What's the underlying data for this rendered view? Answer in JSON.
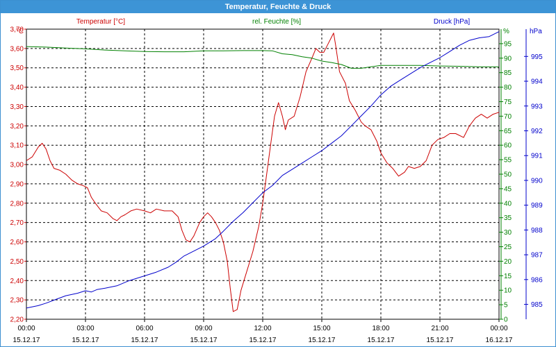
{
  "window": {
    "title": "Temperatur, Feuchte & Druck"
  },
  "chart_data": {
    "type": "line",
    "title": "Temperatur, Feuchte & Druck",
    "grid": true,
    "colors": {
      "temperature": "#cc0000",
      "humidity": "#008000",
      "pressure": "#0000cc",
      "grid": "#000000"
    },
    "x_ticks": [
      {
        "time": "00:00",
        "date": "15.12.17"
      },
      {
        "time": "03:00",
        "date": "15.12.17"
      },
      {
        "time": "06:00",
        "date": "15.12.17"
      },
      {
        "time": "09:00",
        "date": "15.12.17"
      },
      {
        "time": "12:00",
        "date": "15.12.17"
      },
      {
        "time": "15:00",
        "date": "15.12.17"
      },
      {
        "time": "18:00",
        "date": "15.12.17"
      },
      {
        "time": "21:00",
        "date": "15.12.17"
      },
      {
        "time": "00:00",
        "date": "16.12.17"
      }
    ],
    "x_hours": [
      0,
      24
    ],
    "axes": {
      "temperature": {
        "label": "Temperatur [°C]",
        "unit": "°C",
        "ylim": [
          2.2,
          3.7
        ],
        "ticks": [
          "3,70",
          "3,60",
          "3,50",
          "3,40",
          "3,30",
          "3,20",
          "3,10",
          "3,00",
          "2,90",
          "2,80",
          "2,70",
          "2,60",
          "2,50",
          "2,40",
          "2,30",
          "2,20"
        ]
      },
      "humidity": {
        "label": "rel. Feuchte [%]",
        "unit": "%",
        "ylim": [
          0,
          100
        ],
        "ticks": [
          "95",
          "90",
          "85",
          "80",
          "75",
          "70",
          "65",
          "60",
          "55",
          "50",
          "45",
          "40",
          "35",
          "30",
          "25",
          "20",
          "15",
          "10",
          "5",
          "0"
        ]
      },
      "pressure": {
        "label": "Druck [hPa]",
        "unit": "hPa",
        "ylim": [
          984.4,
          996.1
        ],
        "ticks": [
          "995",
          "994",
          "993",
          "992",
          "991",
          "990",
          "989",
          "988",
          "987",
          "986",
          "985"
        ]
      }
    },
    "series": [
      {
        "name": "Temperatur [°C]",
        "axis": "temperature",
        "points": [
          [
            0,
            3.02
          ],
          [
            0.3,
            3.04
          ],
          [
            0.6,
            3.09
          ],
          [
            0.8,
            3.11
          ],
          [
            1.0,
            3.08
          ],
          [
            1.2,
            3.02
          ],
          [
            1.4,
            2.98
          ],
          [
            1.7,
            2.97
          ],
          [
            2.0,
            2.95
          ],
          [
            2.3,
            2.92
          ],
          [
            2.6,
            2.9
          ],
          [
            2.9,
            2.89
          ],
          [
            3.1,
            2.88
          ],
          [
            3.3,
            2.83
          ],
          [
            3.5,
            2.8
          ],
          [
            3.8,
            2.76
          ],
          [
            4.1,
            2.75
          ],
          [
            4.4,
            2.72
          ],
          [
            4.6,
            2.71
          ],
          [
            4.8,
            2.73
          ],
          [
            5.0,
            2.74
          ],
          [
            5.3,
            2.76
          ],
          [
            5.6,
            2.77
          ],
          [
            6.0,
            2.76
          ],
          [
            6.3,
            2.75
          ],
          [
            6.6,
            2.77
          ],
          [
            7.0,
            2.76
          ],
          [
            7.4,
            2.76
          ],
          [
            7.7,
            2.73
          ],
          [
            7.9,
            2.66
          ],
          [
            8.1,
            2.61
          ],
          [
            8.3,
            2.6
          ],
          [
            8.5,
            2.63
          ],
          [
            8.8,
            2.7
          ],
          [
            9.0,
            2.73
          ],
          [
            9.2,
            2.75
          ],
          [
            9.4,
            2.73
          ],
          [
            9.6,
            2.7
          ],
          [
            9.8,
            2.66
          ],
          [
            10.0,
            2.6
          ],
          [
            10.2,
            2.5
          ],
          [
            10.35,
            2.36
          ],
          [
            10.5,
            2.24
          ],
          [
            10.7,
            2.25
          ],
          [
            10.9,
            2.35
          ],
          [
            11.2,
            2.45
          ],
          [
            11.5,
            2.55
          ],
          [
            11.8,
            2.68
          ],
          [
            12.0,
            2.8
          ],
          [
            12.2,
            2.95
          ],
          [
            12.4,
            3.1
          ],
          [
            12.6,
            3.25
          ],
          [
            12.8,
            3.32
          ],
          [
            13.0,
            3.25
          ],
          [
            13.15,
            3.18
          ],
          [
            13.3,
            3.23
          ],
          [
            13.6,
            3.25
          ],
          [
            13.9,
            3.35
          ],
          [
            14.2,
            3.48
          ],
          [
            14.5,
            3.55
          ],
          [
            14.7,
            3.6
          ],
          [
            14.9,
            3.58
          ],
          [
            15.1,
            3.58
          ],
          [
            15.3,
            3.62
          ],
          [
            15.5,
            3.66
          ],
          [
            15.6,
            3.68
          ],
          [
            15.7,
            3.62
          ],
          [
            15.9,
            3.48
          ],
          [
            16.2,
            3.42
          ],
          [
            16.4,
            3.33
          ],
          [
            16.7,
            3.28
          ],
          [
            17.0,
            3.22
          ],
          [
            17.2,
            3.2
          ],
          [
            17.5,
            3.18
          ],
          [
            17.8,
            3.12
          ],
          [
            18.0,
            3.06
          ],
          [
            18.3,
            3.01
          ],
          [
            18.6,
            2.98
          ],
          [
            18.9,
            2.94
          ],
          [
            19.2,
            2.96
          ],
          [
            19.4,
            2.99
          ],
          [
            19.7,
            2.98
          ],
          [
            20.0,
            2.99
          ],
          [
            20.3,
            3.02
          ],
          [
            20.6,
            3.1
          ],
          [
            20.9,
            3.13
          ],
          [
            21.2,
            3.14
          ],
          [
            21.5,
            3.16
          ],
          [
            21.8,
            3.16
          ],
          [
            22.2,
            3.14
          ],
          [
            22.5,
            3.2
          ],
          [
            22.8,
            3.24
          ],
          [
            23.1,
            3.26
          ],
          [
            23.4,
            3.24
          ],
          [
            23.7,
            3.26
          ],
          [
            24.0,
            3.27
          ]
        ]
      },
      {
        "name": "rel. Feuchte [%]",
        "axis": "humidity",
        "points": [
          [
            0,
            94.0
          ],
          [
            1,
            93.8
          ],
          [
            2,
            93.5
          ],
          [
            3,
            93.2
          ],
          [
            4,
            92.8
          ],
          [
            5,
            92.5
          ],
          [
            6,
            92.3
          ],
          [
            7,
            92.2
          ],
          [
            8,
            92.2
          ],
          [
            9,
            92.5
          ],
          [
            10,
            92.5
          ],
          [
            11,
            92.6
          ],
          [
            12,
            92.6
          ],
          [
            12.5,
            92.5
          ],
          [
            13,
            91.5
          ],
          [
            13.5,
            91.2
          ],
          [
            14,
            90.5
          ],
          [
            14.5,
            90.0
          ],
          [
            15,
            89.0
          ],
          [
            15.5,
            88.5
          ],
          [
            16,
            87.8
          ],
          [
            16.5,
            86.5
          ],
          [
            17,
            86.5
          ],
          [
            17.5,
            87.0
          ],
          [
            18,
            87.5
          ],
          [
            19,
            87.5
          ],
          [
            20,
            87.5
          ],
          [
            21,
            87.3
          ],
          [
            22,
            87.2
          ],
          [
            23,
            87.0
          ],
          [
            24,
            87.0
          ]
        ]
      },
      {
        "name": "Druck [hPa]",
        "axis": "pressure",
        "points": [
          [
            0,
            984.85
          ],
          [
            0.6,
            984.95
          ],
          [
            1.0,
            985.05
          ],
          [
            1.5,
            985.2
          ],
          [
            2.0,
            985.35
          ],
          [
            2.6,
            985.45
          ],
          [
            3.0,
            985.55
          ],
          [
            3.3,
            985.5
          ],
          [
            3.6,
            985.6
          ],
          [
            4.0,
            985.65
          ],
          [
            4.6,
            985.75
          ],
          [
            5.2,
            985.95
          ],
          [
            6.0,
            986.15
          ],
          [
            6.6,
            986.3
          ],
          [
            7.2,
            986.5
          ],
          [
            7.6,
            986.7
          ],
          [
            8.0,
            986.95
          ],
          [
            8.5,
            987.15
          ],
          [
            9.0,
            987.35
          ],
          [
            9.6,
            987.65
          ],
          [
            10.0,
            987.95
          ],
          [
            10.5,
            988.35
          ],
          [
            11.0,
            988.7
          ],
          [
            11.5,
            989.1
          ],
          [
            12.0,
            989.5
          ],
          [
            12.5,
            989.8
          ],
          [
            13.0,
            990.2
          ],
          [
            13.5,
            990.45
          ],
          [
            14.0,
            990.7
          ],
          [
            14.5,
            990.95
          ],
          [
            15.0,
            991.2
          ],
          [
            15.5,
            991.5
          ],
          [
            16.0,
            991.8
          ],
          [
            16.5,
            992.2
          ],
          [
            17.0,
            992.6
          ],
          [
            17.5,
            993.0
          ],
          [
            18.0,
            993.45
          ],
          [
            18.5,
            993.8
          ],
          [
            19.0,
            994.05
          ],
          [
            19.5,
            994.3
          ],
          [
            20.0,
            994.55
          ],
          [
            20.5,
            994.75
          ],
          [
            21.0,
            994.95
          ],
          [
            21.5,
            995.2
          ],
          [
            22.0,
            995.45
          ],
          [
            22.5,
            995.65
          ],
          [
            23.0,
            995.75
          ],
          [
            23.5,
            995.8
          ],
          [
            24.0,
            996.0
          ]
        ]
      }
    ]
  }
}
